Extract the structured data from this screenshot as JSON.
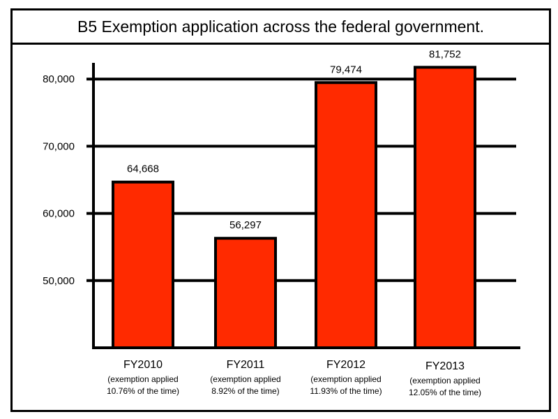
{
  "chart_data": {
    "type": "bar",
    "title": "B5 Exemption application across the federal government.",
    "xlabel": "",
    "ylabel": "",
    "ylim": [
      40000,
      84000
    ],
    "yticks": [
      50000,
      60000,
      70000,
      80000
    ],
    "ytick_labels": [
      "50,000",
      "60,000",
      "70,000",
      "80,000"
    ],
    "grid": true,
    "categories": [
      "FY2010",
      "FY2011",
      "FY2012",
      "FY2013"
    ],
    "values": [
      64668,
      56297,
      79474,
      81752
    ],
    "value_labels": [
      "64,668",
      "56,297",
      "79,474",
      "81,752"
    ],
    "category_notes": [
      [
        "(exemption applied",
        "10.76% of the time)"
      ],
      [
        "(exemption applied",
        "8.92% of the time)"
      ],
      [
        "(exemption applied",
        "11.93% of the time)"
      ],
      [
        "(exemption applied",
        "12.05% of the time)"
      ]
    ],
    "exemption_rates_percent": [
      10.76,
      8.92,
      11.93,
      12.05
    ],
    "bar_color": "#ff2a00",
    "edge_color": "#000000"
  }
}
